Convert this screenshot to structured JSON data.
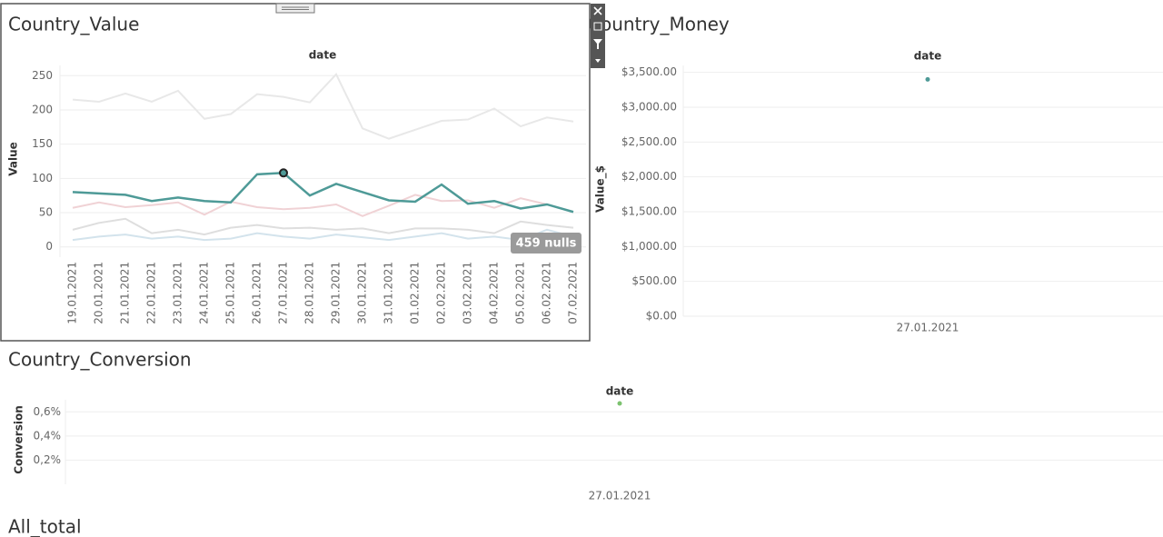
{
  "chart_data": [
    {
      "type": "line",
      "title": "Country_Value",
      "header": "date",
      "y_label": "Value",
      "categories": [
        "19.01.2021",
        "20.01.2021",
        "21.01.2021",
        "22.01.2021",
        "23.01.2021",
        "24.01.2021",
        "25.01.2021",
        "26.01.2021",
        "27.01.2021",
        "28.01.2021",
        "29.01.2021",
        "30.01.2021",
        "31.01.2021",
        "01.02.2021",
        "02.02.2021",
        "03.02.2021",
        "04.02.2021",
        "05.02.2021",
        "06.02.2021",
        "07.02.2021"
      ],
      "series": [
        {
          "color": "#e8e8e8",
          "values": [
            215,
            212,
            224,
            212,
            228,
            187,
            194,
            223,
            219,
            211,
            252,
            173,
            158,
            171,
            184,
            186,
            202,
            176,
            189,
            183
          ]
        },
        {
          "color": "#f0d2d5",
          "values": [
            57,
            65,
            58,
            61,
            65,
            47,
            66,
            58,
            55,
            57,
            62,
            45,
            60,
            76,
            67,
            68,
            57,
            71,
            62,
            null
          ]
        },
        {
          "color": "#dedede",
          "values": [
            25,
            35,
            41,
            20,
            25,
            18,
            28,
            32,
            27,
            28,
            25,
            27,
            20,
            27,
            27,
            25,
            20,
            37,
            32,
            28
          ]
        },
        {
          "color": "#d3e3ec",
          "values": [
            10,
            15,
            18,
            12,
            15,
            10,
            12,
            20,
            15,
            12,
            18,
            14,
            10,
            15,
            20,
            12,
            15,
            10,
            25,
            15
          ]
        },
        {
          "color": "#4e9a97",
          "values": [
            80,
            78,
            76,
            67,
            72,
            67,
            65,
            106,
            108,
            75,
            92,
            80,
            68,
            66,
            91,
            63,
            67,
            56,
            62,
            51
          ]
        }
      ],
      "highlight_point": "27.01.2021",
      "annotation": "459 nulls",
      "ylim": [
        -15,
        265
      ],
      "yticks": [
        0,
        50,
        100,
        150,
        200,
        250
      ],
      "grid": true
    },
    {
      "type": "scatter",
      "title": "Country_Money",
      "header": "date",
      "y_label": "Value_$",
      "categories": [
        "27.01.2021"
      ],
      "color": "#4e9a97",
      "values": [
        3400
      ],
      "ylim": [
        0,
        3600
      ],
      "yticks": [
        {
          "value": 0,
          "label": "$0.00"
        },
        {
          "value": 500,
          "label": "$500.00"
        },
        {
          "value": 1000,
          "label": "$1,000.00"
        },
        {
          "value": 1500,
          "label": "$1,500.00"
        },
        {
          "value": 2000,
          "label": "$2,000.00"
        },
        {
          "value": 2500,
          "label": "$2,500.00"
        },
        {
          "value": 3000,
          "label": "$3,000.00"
        },
        {
          "value": 3500,
          "label": "$3,500.00"
        }
      ],
      "grid": true
    },
    {
      "type": "scatter",
      "title": "Country_Conversion",
      "header": "date",
      "y_label": "Conversion",
      "categories": [
        "27.01.2021"
      ],
      "color": "#7cc26f",
      "values": [
        0.67
      ],
      "ylim": [
        0,
        0.7
      ],
      "yticks": [
        {
          "value": 0.2,
          "label": "0,2%"
        },
        {
          "value": 0.4,
          "label": "0,4%"
        },
        {
          "value": 0.6,
          "label": "0,6%"
        }
      ],
      "grid": true
    }
  ],
  "all_total_title": "All_total"
}
